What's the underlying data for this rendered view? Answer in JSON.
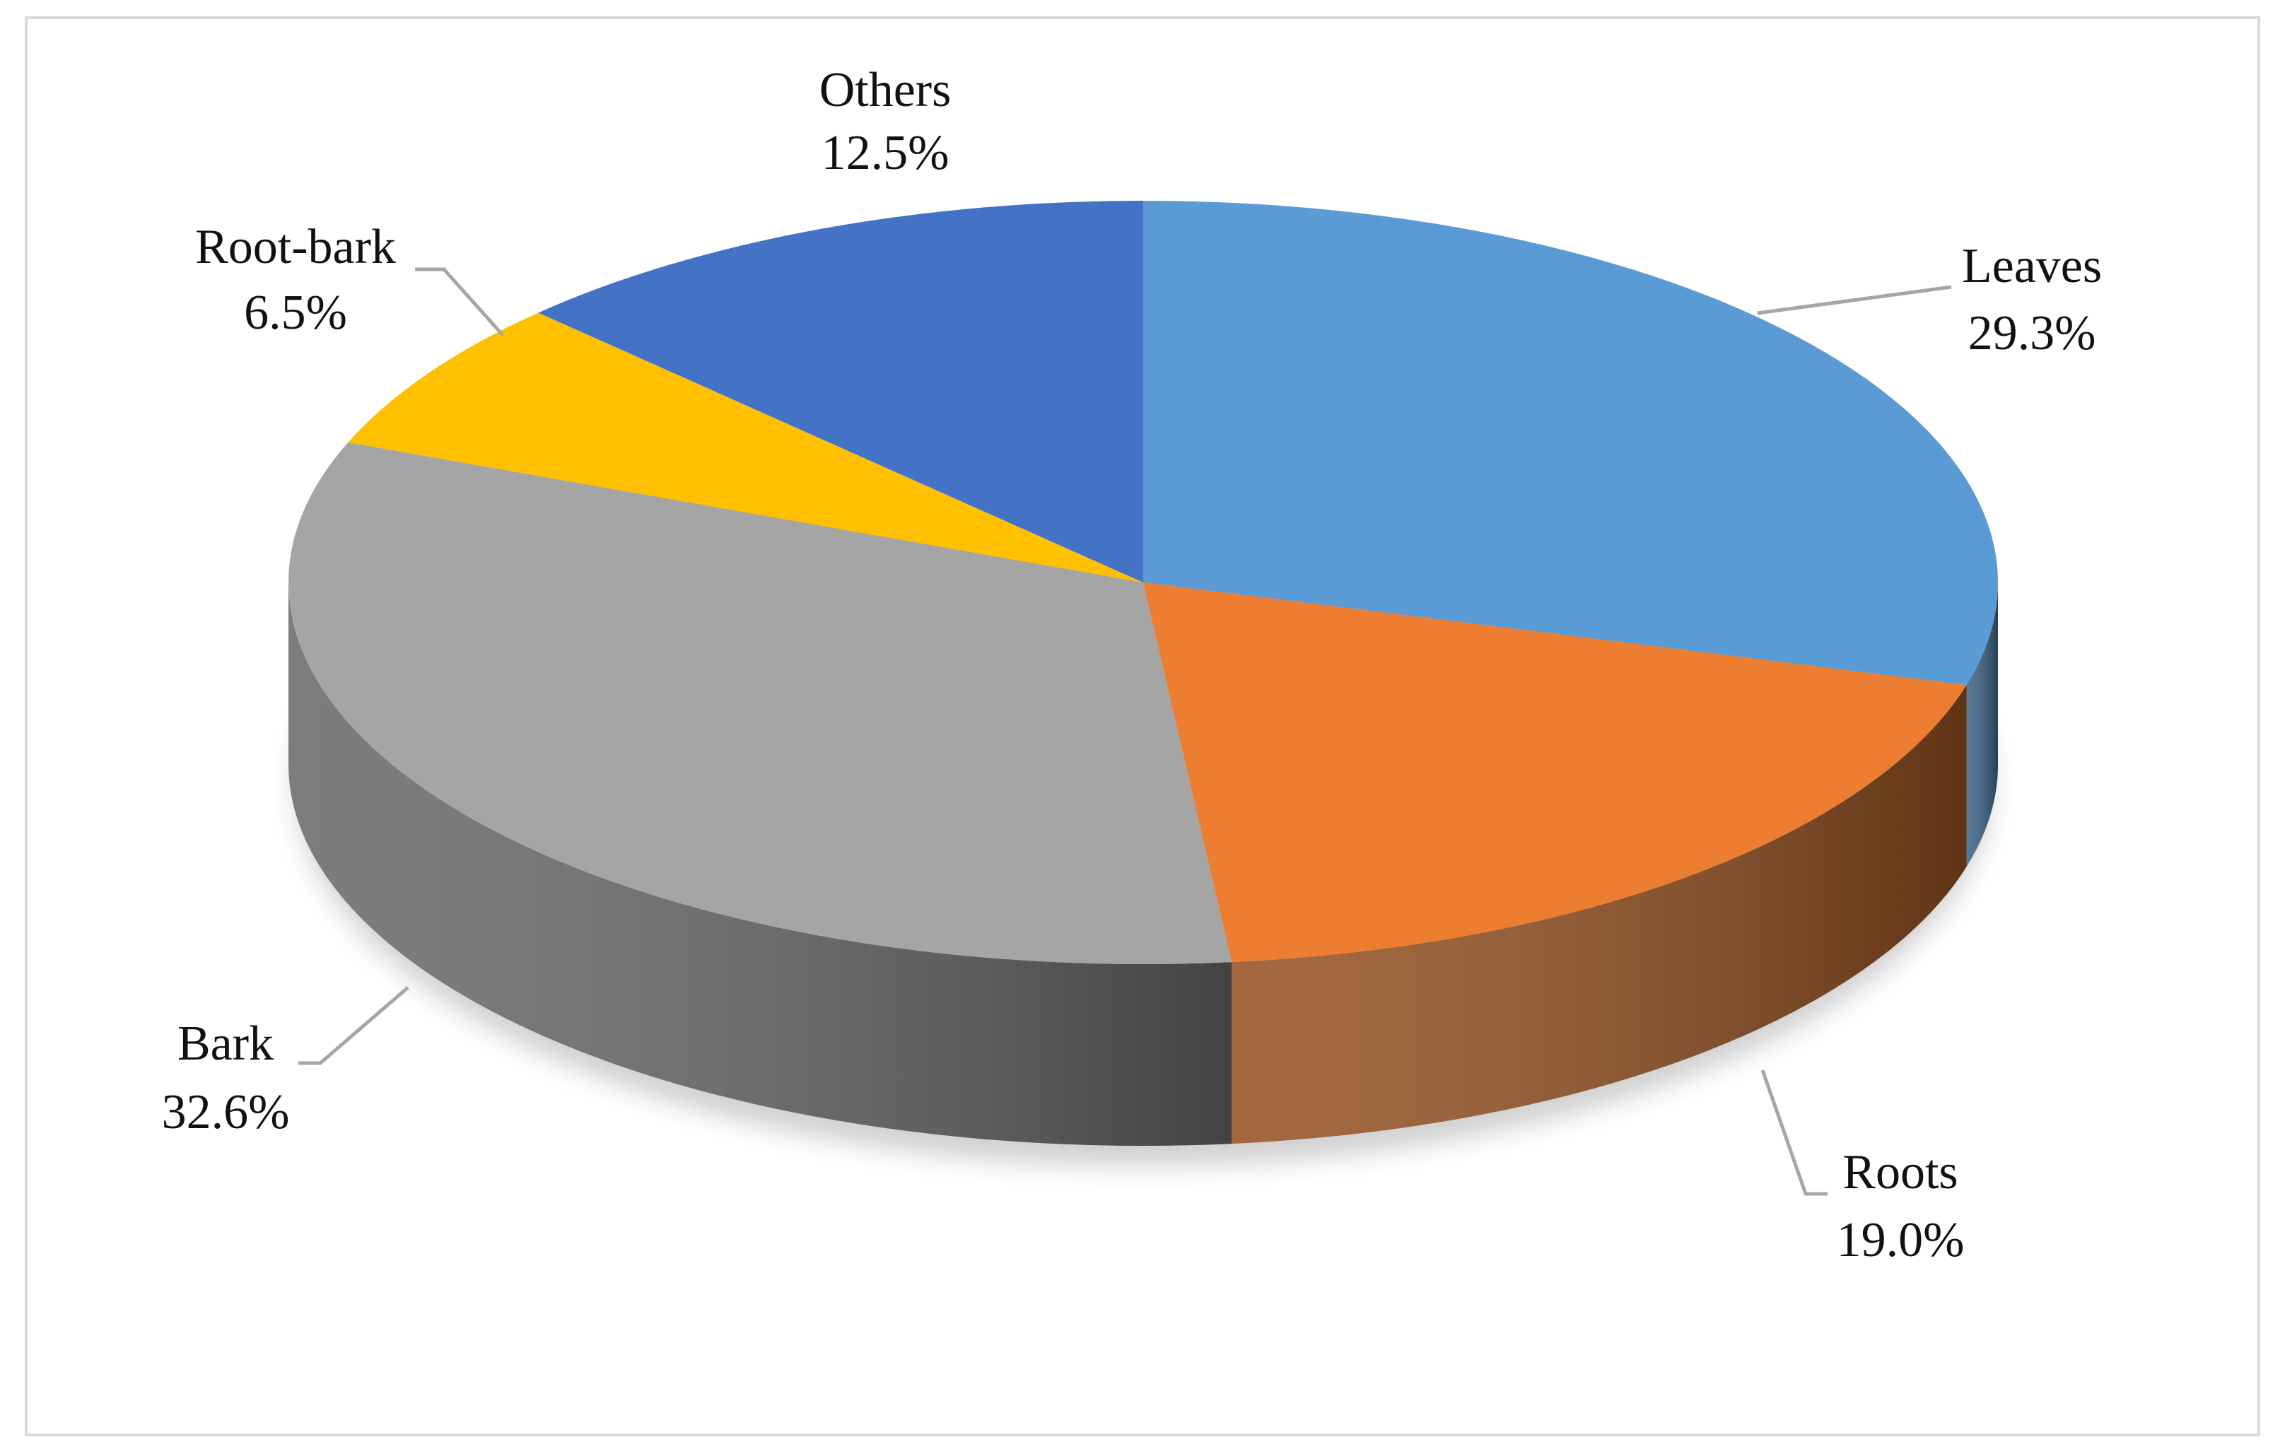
{
  "chart_data": {
    "type": "pie",
    "categories": [
      "Leaves",
      "Roots",
      "Bark",
      "Root-bark",
      "Others"
    ],
    "values": [
      29.3,
      19.0,
      32.6,
      6.5,
      12.5
    ],
    "value_labels": [
      "29.3%",
      "19.0%",
      "32.6%",
      "6.5%",
      "12.5%"
    ],
    "colors": [
      "#5b9bd5",
      "#ed7d31",
      "#a5a5a5",
      "#ffc000",
      "#4472c4"
    ]
  }
}
